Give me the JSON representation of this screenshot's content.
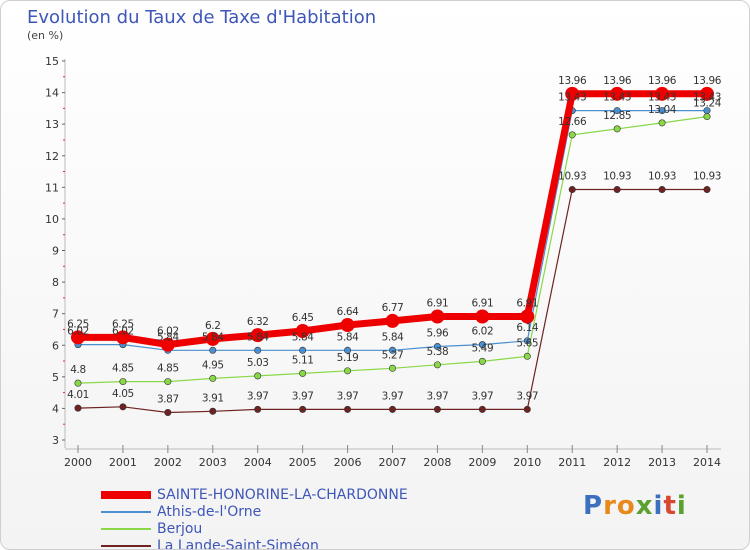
{
  "title": "Evolution du Taux de Taxe d'Habitation",
  "unit_label": "(en %)",
  "logo_text": "Proxiti",
  "chart_data": {
    "type": "line",
    "title": "Evolution du Taux de Taxe d'Habitation",
    "ylabel": "(en %)",
    "xlabel": "",
    "ylim": [
      3,
      15
    ],
    "yticks": [
      3,
      4,
      5,
      6,
      7,
      8,
      9,
      10,
      11,
      12,
      13,
      14,
      15
    ],
    "x": [
      "2000",
      "2001",
      "2002",
      "2003",
      "2004",
      "2005",
      "2006",
      "2007",
      "2008",
      "2009",
      "2010",
      "2011",
      "2012",
      "2013",
      "2014"
    ],
    "legend_position": "bottom-left",
    "series": [
      {
        "name": "SAINTE-HONORINE-LA-CHARDONNE",
        "color": "#ee0000",
        "values": [
          6.25,
          6.25,
          6.02,
          6.2,
          6.32,
          6.45,
          6.64,
          6.77,
          6.91,
          6.91,
          6.91,
          13.96,
          13.96,
          13.96,
          13.96
        ],
        "labels": [
          "6.25",
          "6.25",
          "6.02",
          "6.2",
          "6.32",
          "6.45",
          "6.64",
          "6.77",
          "6.91",
          "6.91",
          "6.91",
          "13.96",
          "13.96",
          "13.96",
          "13.96"
        ]
      },
      {
        "name": "Athis-de-l'Orne",
        "color": "#4a8fcf",
        "values": [
          6.02,
          6.02,
          5.84,
          5.84,
          5.84,
          5.84,
          5.84,
          5.84,
          5.96,
          6.02,
          6.14,
          13.43,
          13.43,
          13.43,
          13.43
        ],
        "labels": [
          "6.02",
          "6.02",
          "5.84",
          "5.84",
          "5.84",
          "5.84",
          "5.84",
          "5.84",
          "5.96",
          "6.02",
          "6.14",
          "13.43",
          "13.43",
          "13.43",
          "13.43"
        ]
      },
      {
        "name": "Berjou",
        "color": "#88d848",
        "values": [
          4.8,
          4.85,
          4.85,
          4.95,
          5.03,
          5.11,
          5.19,
          5.27,
          5.38,
          5.49,
          5.65,
          12.66,
          12.85,
          13.04,
          13.24
        ],
        "labels": [
          "4.8",
          "4.85",
          "4.85",
          "4.95",
          "5.03",
          "5.11",
          "5.19",
          "5.27",
          "5.38",
          "5.49",
          "5.65",
          "12.66",
          "12.85",
          "13.04",
          "13.24"
        ]
      },
      {
        "name": "La Lande-Saint-Siméon",
        "color": "#6e2222",
        "values": [
          4.01,
          4.05,
          3.87,
          3.91,
          3.97,
          3.97,
          3.97,
          3.97,
          3.97,
          3.97,
          3.97,
          10.93,
          10.93,
          10.93,
          10.93
        ],
        "labels": [
          "4.01",
          "4.05",
          "3.87",
          "3.91",
          "3.97",
          "3.97",
          "3.97",
          "3.97",
          "3.97",
          "3.97",
          "3.97",
          "10.93",
          "10.93",
          "10.93",
          "10.93"
        ]
      }
    ]
  }
}
